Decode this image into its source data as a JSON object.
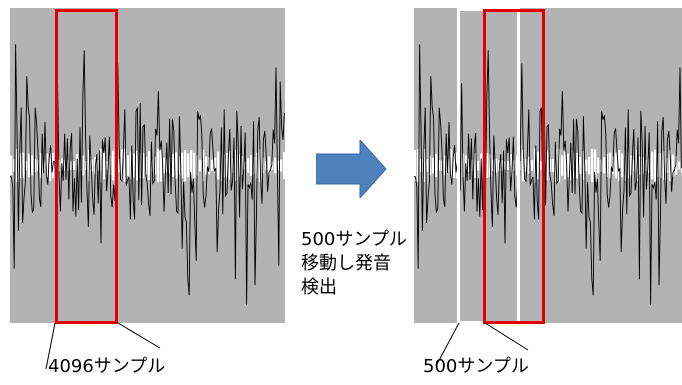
{
  "diagram": {
    "left_label": "4096サンプル",
    "right_label": "500サンプル",
    "caption_lines": [
      "500サンプル",
      "移動し発音",
      "検出"
    ]
  },
  "colors": {
    "panel_bg": "#b3b3b3",
    "waveform": "#000000",
    "red_frame": "#e00000",
    "white_frame": "#ffffff",
    "arrow": "#4f81bd"
  }
}
